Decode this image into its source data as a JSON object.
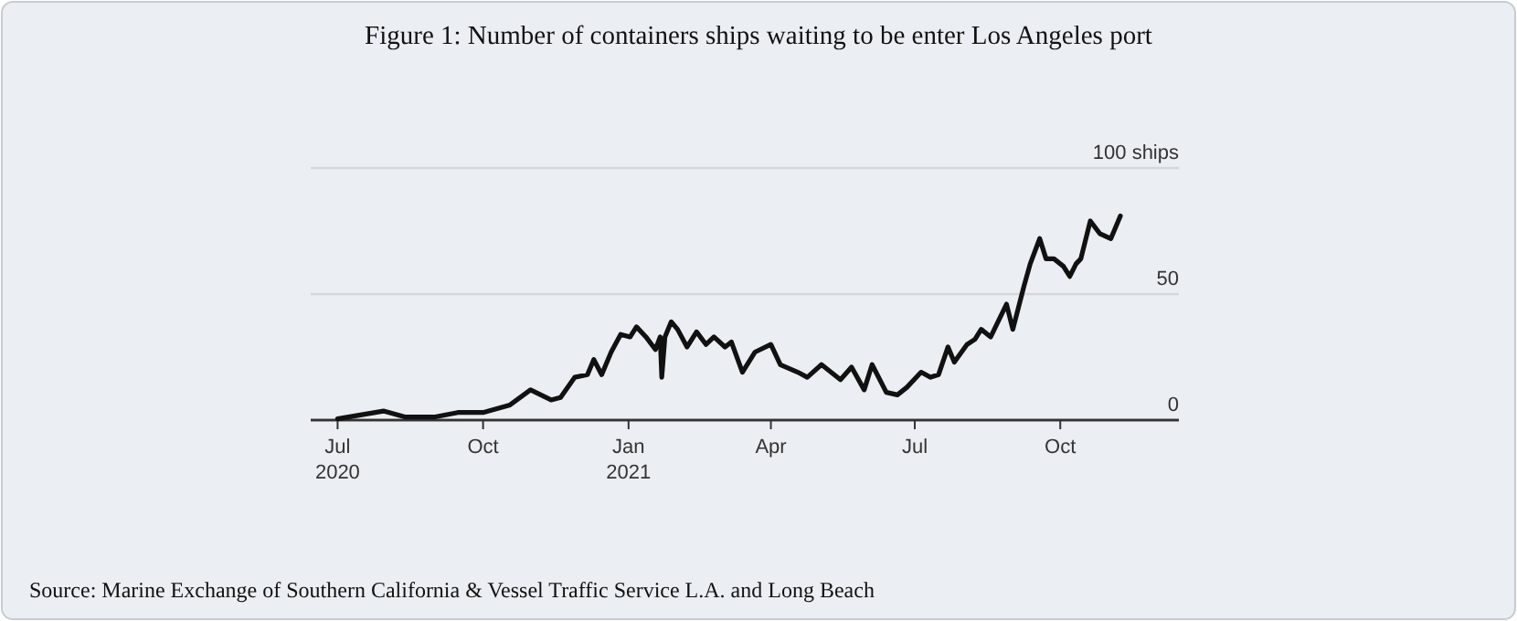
{
  "chart_data": {
    "type": "line",
    "title": "Figure 1: Number of containers ships waiting to be enter Los Angeles port",
    "x": [
      "2020-07-01",
      "2020-07-30",
      "2020-08-13",
      "2020-08-31",
      "2020-09-15",
      "2020-10-01",
      "2020-10-18",
      "2020-10-31",
      "2020-11-13",
      "2020-11-19",
      "2020-11-28",
      "2020-12-06",
      "2020-12-10",
      "2020-12-15",
      "2020-12-21",
      "2020-12-27",
      "2021-01-02",
      "2021-01-06",
      "2021-01-12",
      "2021-01-18",
      "2021-01-21",
      "2021-01-22",
      "2021-01-24",
      "2021-01-28",
      "2021-02-01",
      "2021-02-07",
      "2021-02-13",
      "2021-02-19",
      "2021-02-24",
      "2021-03-03",
      "2021-03-07",
      "2021-03-14",
      "2021-03-22",
      "2021-04-01",
      "2021-04-07",
      "2021-04-18",
      "2021-04-24",
      "2021-05-03",
      "2021-05-15",
      "2021-05-22",
      "2021-05-30",
      "2021-06-04",
      "2021-06-13",
      "2021-06-20",
      "2021-06-26",
      "2021-07-05",
      "2021-07-11",
      "2021-07-16",
      "2021-07-22",
      "2021-07-26",
      "2021-08-03",
      "2021-08-08",
      "2021-08-12",
      "2021-08-18",
      "2021-08-28",
      "2021-09-01",
      "2021-09-08",
      "2021-09-12",
      "2021-09-18",
      "2021-09-22",
      "2021-09-27",
      "2021-10-03",
      "2021-10-07",
      "2021-10-11",
      "2021-10-14",
      "2021-10-20",
      "2021-10-26",
      "2021-11-02",
      "2021-11-08"
    ],
    "series": [
      {
        "color": "#111111",
        "values": [
          0.5,
          3.6,
          1.2,
          1.2,
          3,
          3,
          6,
          12,
          8,
          9,
          17,
          18,
          24,
          18,
          27,
          34,
          33,
          37,
          33,
          28,
          33,
          17,
          33,
          39,
          36,
          29,
          35,
          30,
          33,
          29,
          31,
          19,
          27,
          30,
          22,
          19,
          17,
          22,
          16,
          21,
          12,
          22,
          11,
          10,
          13,
          19,
          17,
          18,
          29,
          23,
          30,
          32,
          36,
          33,
          46,
          36,
          53,
          62,
          72,
          64,
          64,
          61,
          57,
          62,
          64,
          79,
          74,
          72,
          81
        ]
      }
    ],
    "xlim": [
      "2020-06-14",
      "2021-12-15"
    ],
    "xticks": [
      {
        "value": "2020-07-01",
        "label": "Jul\n2020"
      },
      {
        "value": "2020-10-01",
        "label": "Oct"
      },
      {
        "value": "2021-01-01",
        "label": "Jan\n2021"
      },
      {
        "value": "2021-04-01",
        "label": "Apr"
      },
      {
        "value": "2021-07-01",
        "label": "Jul"
      },
      {
        "value": "2021-10-01",
        "label": "Oct"
      }
    ],
    "ylim": [
      0,
      100
    ],
    "yticks": [
      0,
      50,
      {
        "value": 100,
        "label": "100 ships"
      }
    ],
    "grid": "y",
    "annotations": [
      "Source: Marine Exchange of Southern California & Vessel Traffic Service L.A. and Long Beach"
    ]
  }
}
